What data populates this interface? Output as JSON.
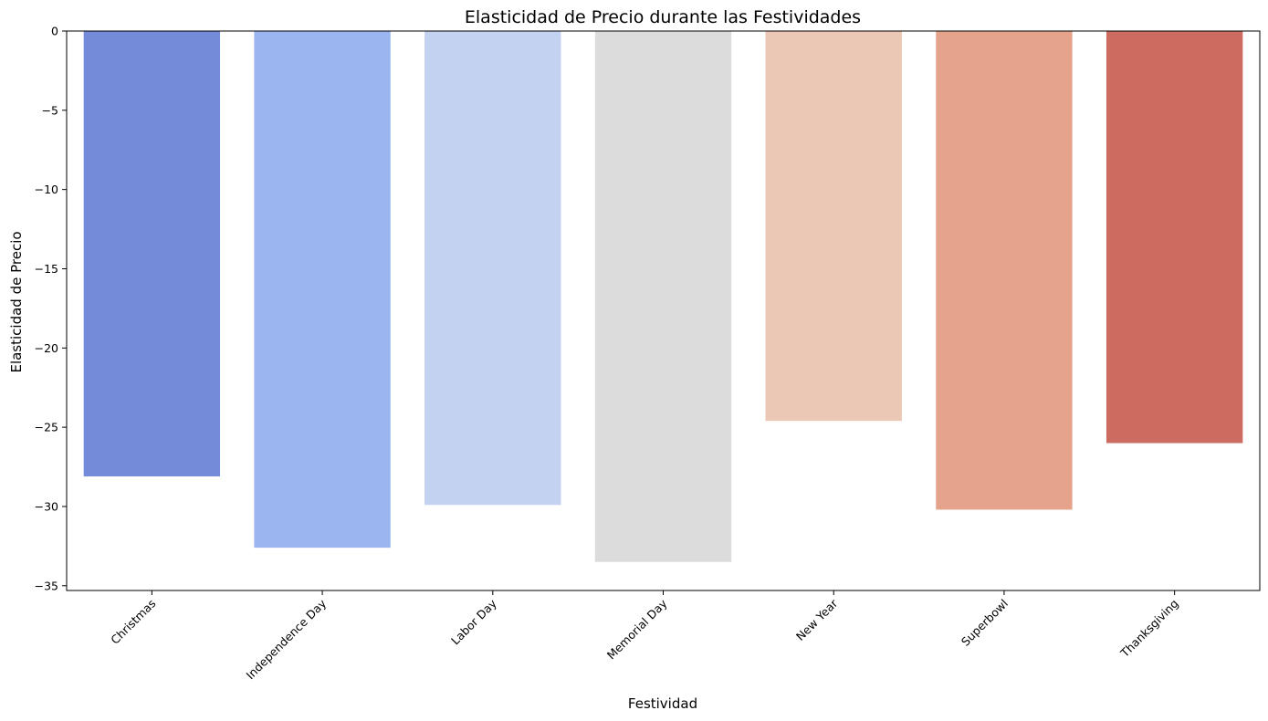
{
  "chart_data": {
    "type": "bar",
    "title": "Elasticidad de Precio durante las Festividades",
    "xlabel": "Festividad",
    "ylabel": "Elasticidad de Precio",
    "categories": [
      "Christmas",
      "Independence Day",
      "Labor Day",
      "Memorial Day",
      "New Year",
      "Superbowl",
      "Thanksgiving"
    ],
    "values": [
      -28.1,
      -32.6,
      -29.9,
      -33.5,
      -24.6,
      -30.2,
      -26.0
    ],
    "colors": [
      "#748bd9",
      "#9bb5f0",
      "#c2d2f0",
      "#dcdcdc",
      "#ebc7b5",
      "#e5a38c",
      "#cc6c60"
    ],
    "ylim": [
      -35.3,
      0
    ],
    "yticks": [
      0,
      -5,
      -10,
      -15,
      -20,
      -25,
      -30,
      -35
    ],
    "ytick_labels": [
      "0",
      "−5",
      "−10",
      "−15",
      "−20",
      "−25",
      "−30",
      "−35"
    ],
    "grid": false,
    "legend": "none"
  }
}
